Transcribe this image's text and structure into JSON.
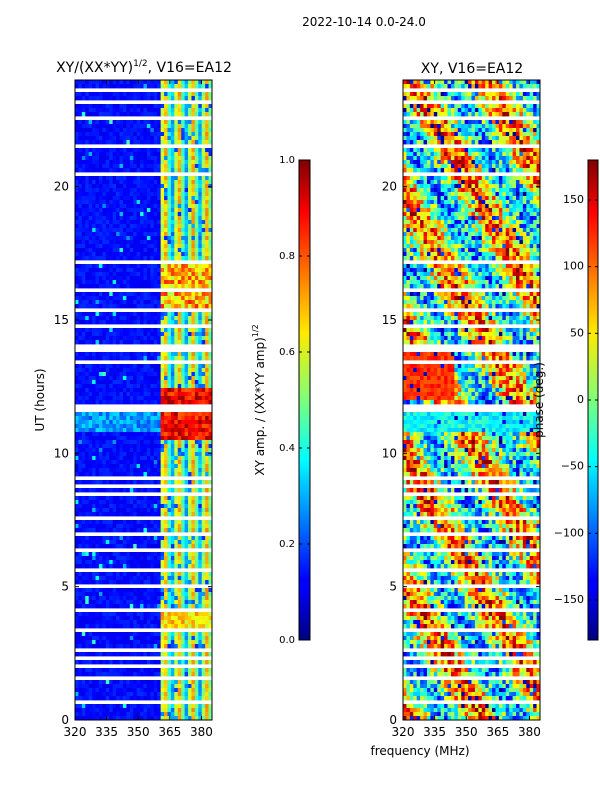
{
  "figure_title": "2022-10-14 0.0-24.0",
  "shared_xlabel": "frequency (MHz)",
  "chart_data": [
    {
      "type": "heatmap",
      "title": "XY/(XX*YY)^1/2, V16=EA12",
      "title_main": "XY/(XX*YY)",
      "title_sup": "1/2",
      "title_tail": ", V16=EA12",
      "xlabel": "frequency (MHz)",
      "ylabel": "UT (hours)",
      "xlim": [
        320,
        385
      ],
      "ylim": [
        0,
        24
      ],
      "xticks": [
        320,
        335,
        350,
        365,
        380
      ],
      "yticks": [
        0,
        5,
        10,
        15,
        20
      ],
      "colormap": "jet",
      "colorbar": {
        "label": "XY amp. / (XX*YY amp)^1/2",
        "label_main": "XY amp. / (XX*YY amp)",
        "label_sup": "1/2",
        "vmin": 0.0,
        "vmax": 1.0,
        "ticks": [
          0.0,
          0.2,
          0.4,
          0.6,
          0.8,
          1.0
        ],
        "tick_labels": [
          "0.0",
          "0.2",
          "0.4",
          "0.6",
          "0.8",
          "1.0"
        ]
      },
      "flagged_hours": [
        0.3,
        0.7,
        1.2,
        1.6,
        2.0,
        2.3,
        2.6,
        3.0,
        3.4,
        3.6,
        4.1,
        5.0,
        5.6,
        6.0,
        6.4,
        7.0,
        7.6,
        8.1,
        8.5,
        8.8,
        9.1,
        9.6,
        9.75,
        11.6,
        11.8,
        12.0,
        13.4,
        13.9,
        14.0,
        14.8,
        15.4,
        16.1,
        16.8,
        17.2,
        17.4,
        20.4,
        20.5,
        21.5,
        22.2,
        22.6,
        23.1,
        23.2,
        23.6
      ]
    },
    {
      "type": "heatmap",
      "title": "XY, V16=EA12",
      "xlabel": "frequency (MHz)",
      "ylabel": "",
      "xlim": [
        320,
        385
      ],
      "ylim": [
        0,
        24
      ],
      "xticks": [
        320,
        335,
        350,
        365,
        380
      ],
      "yticks": [
        0,
        5,
        10,
        15,
        20
      ],
      "colormap": "jet",
      "colorbar": {
        "label": "phase (deg.)",
        "vmin": -180,
        "vmax": 180,
        "ticks": [
          -150,
          -100,
          -50,
          0,
          50,
          100,
          150
        ],
        "tick_labels": [
          "−150",
          "−100",
          "−50",
          "0",
          "50",
          "100",
          "150"
        ]
      },
      "flagged_hours": [
        0.3,
        0.7,
        1.2,
        1.6,
        2.0,
        2.3,
        2.6,
        3.0,
        3.4,
        3.6,
        4.1,
        5.0,
        5.6,
        6.0,
        6.4,
        7.0,
        7.6,
        8.1,
        8.5,
        8.8,
        9.1,
        9.6,
        9.75,
        11.6,
        11.8,
        12.0,
        13.4,
        13.9,
        14.0,
        14.8,
        15.4,
        16.1,
        16.8,
        17.2,
        17.4,
        20.4,
        20.5,
        21.5,
        22.2,
        22.6,
        23.1,
        23.2,
        23.6
      ]
    }
  ]
}
